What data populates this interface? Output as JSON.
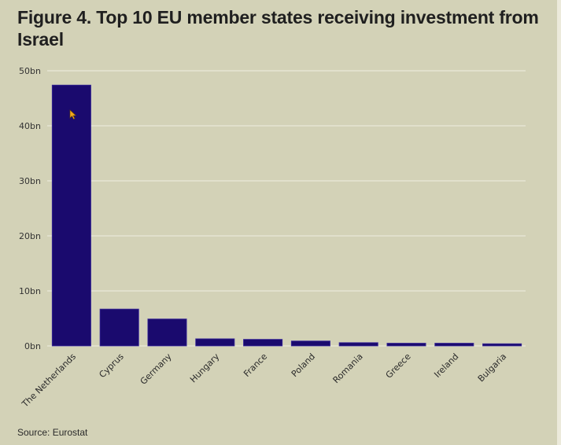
{
  "title": "Figure 4. Top 10 EU member states receiving investment from Israel",
  "source": "Source: Eurostat",
  "colors": {
    "bar": "#1a0a6e",
    "background": "#d3d2b7",
    "grid": "#e6e5d3"
  },
  "chart_data": {
    "type": "bar",
    "title": "Figure 4. Top 10 EU member states receiving investment from Israel",
    "xlabel": "",
    "ylabel": "",
    "categories": [
      "The Netherlands",
      "Cyprus",
      "Germany",
      "Hungary",
      "France",
      "Poland",
      "Romania",
      "Greece",
      "Ireland",
      "Bulgaria"
    ],
    "values": [
      47.4,
      6.7,
      4.9,
      1.3,
      1.2,
      0.9,
      0.6,
      0.5,
      0.5,
      0.4
    ],
    "unit": "bn",
    "ylim": [
      0,
      50
    ],
    "yticks": [
      0,
      10,
      20,
      30,
      40,
      50
    ],
    "ytick_labels": [
      "0bn",
      "10bn",
      "20bn",
      "30bn",
      "40bn",
      "50bn"
    ],
    "grid": true,
    "legend": "none",
    "xtick_rotation": "diagonal",
    "source": "Source: Eurostat"
  }
}
